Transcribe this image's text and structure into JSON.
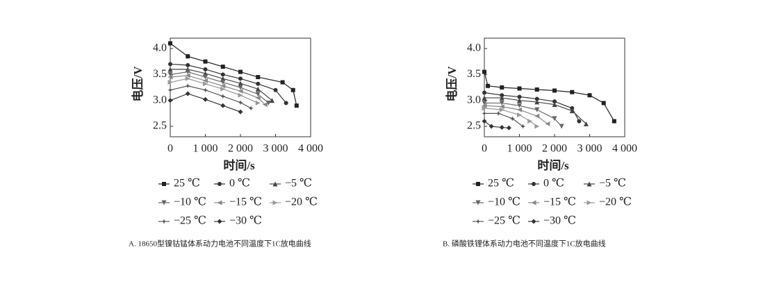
{
  "chart_data": [
    {
      "type": "line",
      "caption": "A.  18650型镍钴锰体系动力电池不同温度下1C放电曲线",
      "ylabel": "电压/V",
      "xlabel": "时间/s",
      "xlim": [
        0,
        4000
      ],
      "xticks": [
        0,
        {
          "value": 1000,
          "label": "1 000"
        },
        {
          "value": 2000,
          "label": "2 000"
        },
        {
          "value": 3000,
          "label": "3 000"
        },
        {
          "value": 4000,
          "label": "4 000"
        }
      ],
      "ylim": [
        2.3,
        4.2
      ],
      "yticks": [
        2.5,
        {
          "value": 3,
          "label": "3.0"
        },
        3.5,
        {
          "value": 4,
          "label": "4.0"
        }
      ],
      "series": [
        {
          "name": "25 ℃",
          "color": "#222222",
          "marker": "square",
          "x": [
            0,
            500,
            1000,
            1500,
            2000,
            2500,
            3200,
            3500,
            3600
          ],
          "values": [
            4.1,
            3.85,
            3.75,
            3.65,
            3.55,
            3.45,
            3.35,
            3.2,
            2.9
          ]
        },
        {
          "name": "0 ℃",
          "color": "#333333",
          "marker": "circle",
          "x": [
            0,
            500,
            1000,
            1500,
            2000,
            2500,
            3000,
            3300
          ],
          "values": [
            3.7,
            3.68,
            3.6,
            3.5,
            3.42,
            3.32,
            3.2,
            2.95
          ]
        },
        {
          "name": "−5 ℃",
          "color": "#444444",
          "marker": "up",
          "x": [
            0,
            500,
            1000,
            1500,
            2000,
            2500,
            2900
          ],
          "values": [
            3.6,
            3.6,
            3.52,
            3.42,
            3.33,
            3.22,
            3.0
          ]
        },
        {
          "name": "−10 ℃",
          "color": "#666666",
          "marker": "down",
          "x": [
            0,
            500,
            1000,
            1500,
            2000,
            2500,
            2800
          ],
          "values": [
            3.5,
            3.55,
            3.45,
            3.35,
            3.25,
            3.12,
            2.95
          ]
        },
        {
          "name": "−15 ℃",
          "color": "#888888",
          "marker": "left",
          "x": [
            0,
            500,
            1000,
            1500,
            2000,
            2500,
            2700
          ],
          "values": [
            3.45,
            3.48,
            3.38,
            3.28,
            3.18,
            3.05,
            2.92
          ]
        },
        {
          "name": "−20 ℃",
          "color": "#999999",
          "marker": "right",
          "x": [
            0,
            500,
            1000,
            1500,
            2000,
            2500
          ],
          "values": [
            3.35,
            3.42,
            3.32,
            3.22,
            3.1,
            2.95
          ]
        },
        {
          "name": "−25 ℃",
          "color": "#555555",
          "marker": "star",
          "x": [
            0,
            500,
            1000,
            1500,
            2000,
            2300
          ],
          "values": [
            3.2,
            3.28,
            3.2,
            3.08,
            2.96,
            2.85
          ]
        },
        {
          "name": "−30 ℃",
          "color": "#333333",
          "marker": "diamond",
          "x": [
            0,
            500,
            1000,
            1500,
            2000
          ],
          "values": [
            3.0,
            3.13,
            3.02,
            2.9,
            2.78
          ]
        }
      ]
    },
    {
      "type": "line",
      "caption": "B.  磷酸铁锂体系动力电池不同温度下1C放电曲线",
      "ylabel": "电压/V",
      "xlabel": "时间/s",
      "xlim": [
        0,
        4000
      ],
      "xticks": [
        0,
        {
          "value": 1000,
          "label": "1 000"
        },
        {
          "value": 2000,
          "label": "2 000"
        },
        {
          "value": 3000,
          "label": "3 000"
        },
        {
          "value": 4000,
          "label": "4 000"
        }
      ],
      "ylim": [
        2.3,
        4.2
      ],
      "yticks": [
        2.5,
        {
          "value": 3,
          "label": "3.0"
        },
        3.5,
        {
          "value": 4,
          "label": "4.0"
        }
      ],
      "series": [
        {
          "name": "25 ℃",
          "color": "#222222",
          "marker": "square",
          "x": [
            0,
            100,
            500,
            1000,
            1500,
            2000,
            2500,
            3000,
            3400,
            3700
          ],
          "values": [
            3.55,
            3.28,
            3.25,
            3.23,
            3.21,
            3.19,
            3.16,
            3.1,
            2.95,
            2.6
          ]
        },
        {
          "name": "0 ℃",
          "color": "#333333",
          "marker": "circle",
          "x": [
            0,
            500,
            1000,
            1500,
            2000,
            2500,
            2700
          ],
          "values": [
            3.15,
            3.1,
            3.07,
            3.03,
            2.98,
            2.85,
            2.6
          ]
        },
        {
          "name": "−5 ℃",
          "color": "#444444",
          "marker": "up",
          "x": [
            0,
            500,
            1000,
            1500,
            2000,
            2500,
            2900
          ],
          "values": [
            3.05,
            3.05,
            3.0,
            2.97,
            2.92,
            2.8,
            2.55
          ]
        },
        {
          "name": "−10 ℃",
          "color": "#666666",
          "marker": "down",
          "x": [
            0,
            500,
            1000,
            1500,
            2000,
            2200
          ],
          "values": [
            2.95,
            2.95,
            2.9,
            2.82,
            2.65,
            2.5
          ]
        },
        {
          "name": "−15 ℃",
          "color": "#888888",
          "marker": "left",
          "x": [
            0,
            500,
            1000,
            1500,
            1800
          ],
          "values": [
            2.9,
            2.88,
            2.82,
            2.7,
            2.55
          ]
        },
        {
          "name": "−20 ℃",
          "color": "#999999",
          "marker": "right",
          "x": [
            0,
            500,
            1000,
            1300,
            1500
          ],
          "values": [
            2.85,
            2.82,
            2.72,
            2.6,
            2.5
          ]
        },
        {
          "name": "−25 ℃",
          "color": "#555555",
          "marker": "star",
          "x": [
            0,
            400,
            800,
            1100
          ],
          "values": [
            2.75,
            2.75,
            2.65,
            2.5
          ]
        },
        {
          "name": "−30 ℃",
          "color": "#333333",
          "marker": "diamond",
          "x": [
            0,
            200,
            500,
            700
          ],
          "values": [
            2.6,
            2.5,
            2.48,
            2.47
          ]
        }
      ]
    }
  ]
}
